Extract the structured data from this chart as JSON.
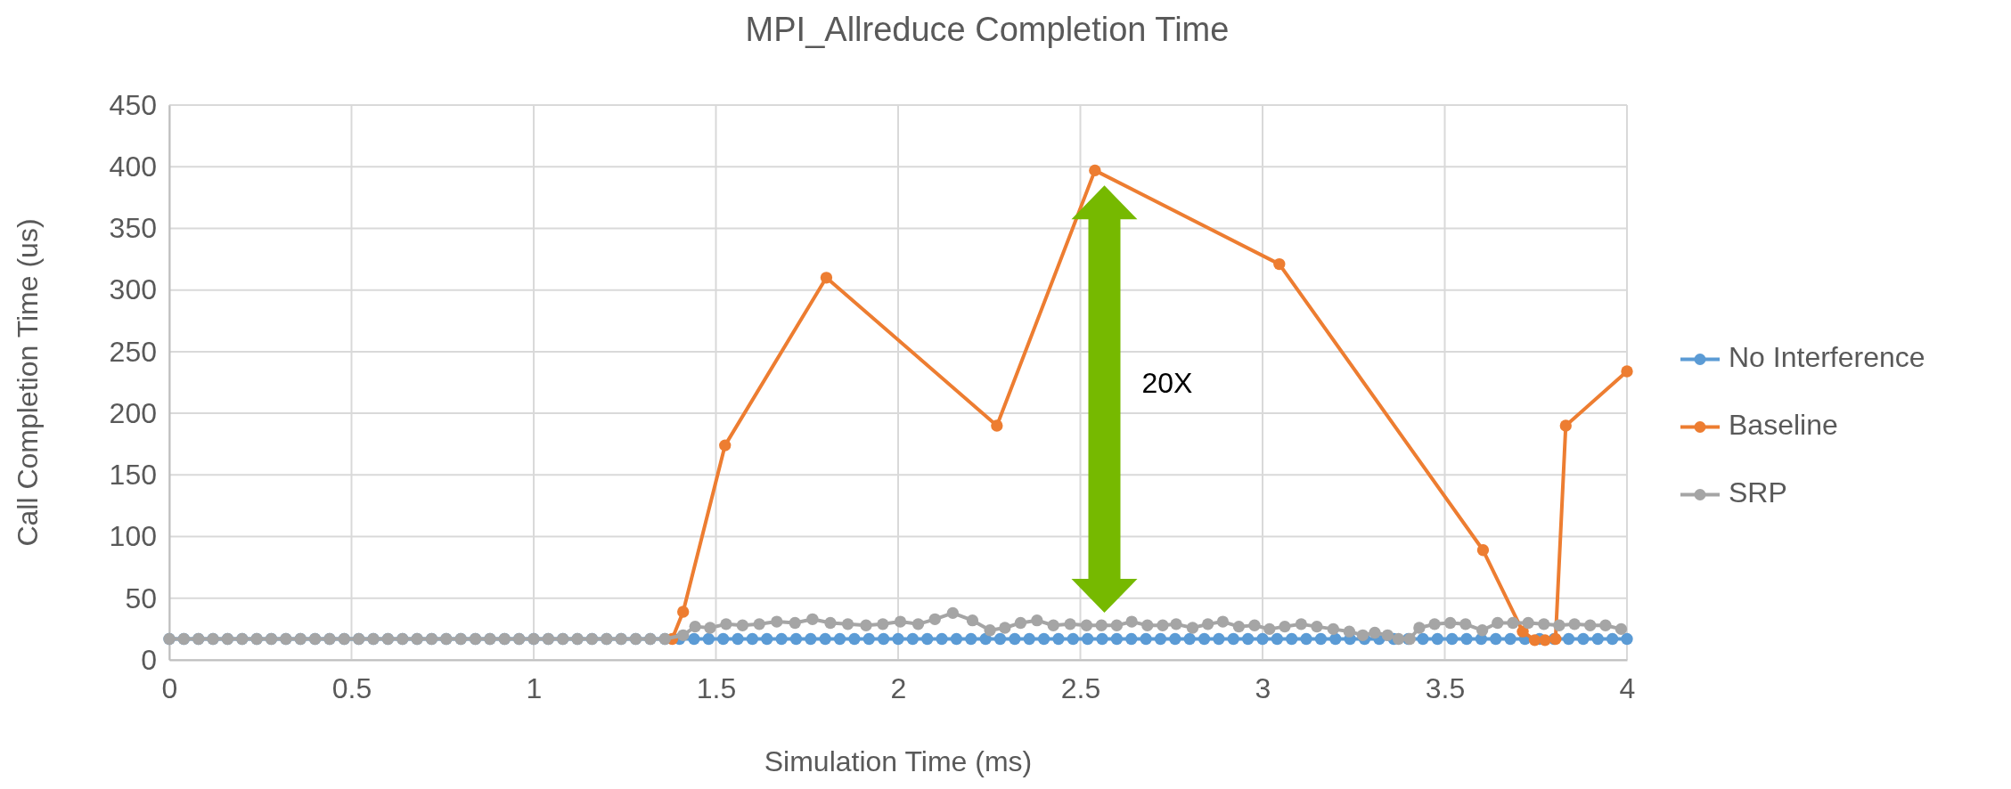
{
  "chart_data": {
    "type": "line",
    "title": "MPI_Allreduce Completion Time",
    "xlabel": "Simulation Time (ms)",
    "ylabel": "Call Completion Time (us)",
    "xlim": [
      0,
      4
    ],
    "xticks": [
      0,
      0.5,
      1,
      1.5,
      2,
      2.5,
      3,
      3.5,
      4
    ],
    "ylim": [
      0,
      450
    ],
    "yticks": [
      0,
      50,
      100,
      150,
      200,
      250,
      300,
      350,
      400,
      450
    ],
    "grid": true,
    "legend": "right",
    "marker": "circle",
    "line_style": "solid",
    "annotations": [
      "20X"
    ],
    "series": [
      {
        "name": "No Interference",
        "color": "#5b9bd5",
        "x": [
          0,
          0.04,
          0.08,
          0.12,
          0.16,
          0.2,
          0.24,
          0.28,
          0.32,
          0.36,
          0.4,
          0.44,
          0.48,
          0.52,
          0.56,
          0.6,
          0.64,
          0.68,
          0.72,
          0.76,
          0.8,
          0.84,
          0.88,
          0.92,
          0.96,
          1,
          1.04,
          1.08,
          1.12,
          1.16,
          1.2,
          1.24,
          1.28,
          1.32,
          1.36,
          1.4,
          1.44,
          1.48,
          1.52,
          1.56,
          1.6,
          1.64,
          1.68,
          1.72,
          1.76,
          1.8,
          1.84,
          1.88,
          1.92,
          1.96,
          2,
          2.04,
          2.08,
          2.12,
          2.16,
          2.2,
          2.24,
          2.28,
          2.32,
          2.36,
          2.4,
          2.44,
          2.48,
          2.52,
          2.56,
          2.6,
          2.64,
          2.68,
          2.72,
          2.76,
          2.8,
          2.84,
          2.88,
          2.92,
          2.96,
          3,
          3.04,
          3.08,
          3.12,
          3.16,
          3.2,
          3.24,
          3.28,
          3.32,
          3.36,
          3.4,
          3.44,
          3.48,
          3.52,
          3.56,
          3.6,
          3.64,
          3.68,
          3.72,
          3.76,
          3.8,
          3.84,
          3.88,
          3.92,
          3.96,
          4
        ],
        "values": [
          17,
          17,
          17,
          17,
          17,
          17,
          17,
          17,
          17,
          17,
          17,
          17,
          17,
          17,
          17,
          17,
          17,
          17,
          17,
          17,
          17,
          17,
          17,
          17,
          17,
          17,
          17,
          17,
          17,
          17,
          17,
          17,
          17,
          17,
          17,
          17,
          17,
          17,
          17,
          17,
          17,
          17,
          17,
          17,
          17,
          17,
          17,
          17,
          17,
          17,
          17,
          17,
          17,
          17,
          17,
          17,
          17,
          17,
          17,
          17,
          17,
          17,
          17,
          17,
          17,
          17,
          17,
          17,
          17,
          17,
          17,
          17,
          17,
          17,
          17,
          17,
          17,
          17,
          17,
          17,
          17,
          17,
          17,
          17,
          17,
          17,
          17,
          17,
          17,
          17,
          17,
          17,
          17,
          17,
          17,
          17,
          17,
          17,
          17,
          17,
          17
        ]
      },
      {
        "name": "Baseline",
        "color": "#ed7d31",
        "x": [
          1.38,
          1.41,
          1.525,
          1.803,
          2.271,
          2.54,
          3.046,
          3.605,
          3.714,
          3.747,
          3.775,
          3.804,
          3.832,
          4
        ],
        "values": [
          17,
          39,
          174,
          310,
          190,
          397,
          321,
          89,
          23,
          16,
          16,
          17,
          190,
          234
        ]
      },
      {
        "name": "SRP",
        "color": "#a5a5a5",
        "x": [
          0,
          0.04,
          0.08,
          0.12,
          0.16,
          0.2,
          0.24,
          0.28,
          0.32,
          0.36,
          0.4,
          0.44,
          0.48,
          0.52,
          0.56,
          0.6,
          0.64,
          0.68,
          0.72,
          0.76,
          0.8,
          0.84,
          0.88,
          0.92,
          0.96,
          1,
          1.04,
          1.08,
          1.12,
          1.16,
          1.2,
          1.24,
          1.28,
          1.32,
          1.36,
          1.41,
          1.443,
          1.484,
          1.528,
          1.573,
          1.619,
          1.667,
          1.717,
          1.765,
          1.814,
          1.862,
          1.912,
          1.958,
          2.006,
          2.055,
          2.101,
          2.15,
          2.204,
          2.252,
          2.293,
          2.336,
          2.381,
          2.426,
          2.472,
          2.517,
          2.558,
          2.6,
          2.641,
          2.684,
          2.726,
          2.763,
          2.808,
          2.85,
          2.891,
          2.935,
          2.978,
          3.019,
          3.061,
          3.106,
          3.149,
          3.194,
          3.238,
          3.275,
          3.308,
          3.343,
          3.373,
          3.404,
          3.43,
          3.472,
          3.515,
          3.557,
          3.603,
          3.645,
          3.687,
          3.729,
          3.772,
          3.814,
          3.856,
          3.899,
          3.941,
          3.984
        ],
        "values": [
          17,
          17,
          17,
          17,
          17,
          17,
          17,
          17,
          17,
          17,
          17,
          17,
          17,
          17,
          17,
          17,
          17,
          17,
          17,
          17,
          17,
          17,
          17,
          17,
          17,
          17,
          17,
          17,
          17,
          17,
          17,
          17,
          17,
          17,
          17,
          20,
          27,
          26,
          29,
          28,
          29,
          31,
          30,
          33,
          30,
          29,
          28,
          29,
          31,
          29,
          33,
          38,
          32,
          24,
          26,
          30,
          32,
          28,
          29,
          28,
          28,
          28,
          31,
          28,
          28,
          29,
          26,
          29,
          31,
          27,
          28,
          25,
          27,
          29,
          27,
          25,
          23,
          20,
          22,
          20,
          17,
          17,
          26,
          29,
          30,
          29,
          24,
          30,
          30,
          30,
          29,
          28,
          29,
          28,
          28,
          25
        ]
      }
    ]
  }
}
